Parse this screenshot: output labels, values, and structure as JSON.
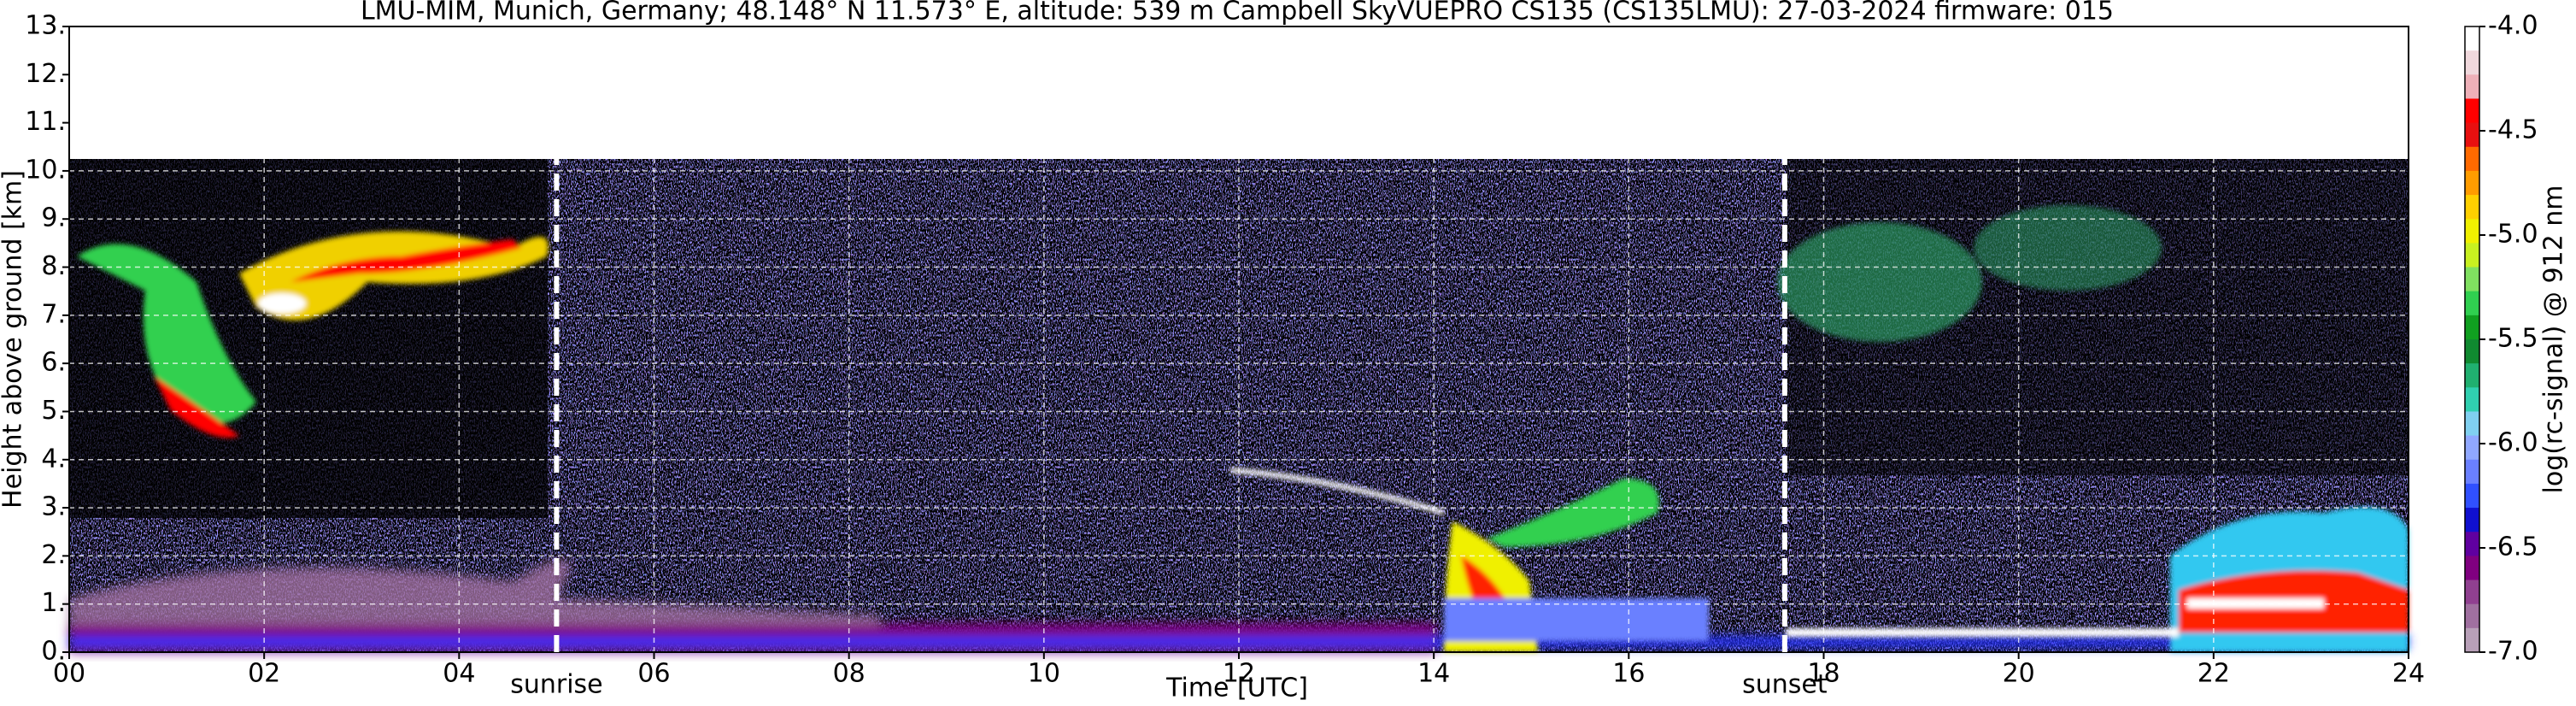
{
  "chart_data": {
    "type": "heatmap",
    "title": "LMU-MIM, Munich, Germany; 48.148° N 11.573° E, altitude: 539 m    Campbell SkyVUEPRO CS135 (CS135LMU): 27-03-2024    firmware: 015",
    "x_label": "Time [UTC]",
    "y_label": "Height above ground [km]",
    "xlim": [
      0,
      24
    ],
    "ylim": [
      0,
      13
    ],
    "xticks": [
      {
        "value": 0,
        "label": "00"
      },
      {
        "value": 2,
        "label": "02"
      },
      {
        "value": 4,
        "label": "04"
      },
      {
        "value": 6,
        "label": "06"
      },
      {
        "value": 8,
        "label": "08"
      },
      {
        "value": 10,
        "label": "10"
      },
      {
        "value": 12,
        "label": "12"
      },
      {
        "value": 14,
        "label": "14"
      },
      {
        "value": 16,
        "label": "16"
      },
      {
        "value": 18,
        "label": "18"
      },
      {
        "value": 20,
        "label": "20"
      },
      {
        "value": 22,
        "label": "22"
      },
      {
        "value": 24,
        "label": "24"
      }
    ],
    "yticks": [
      {
        "value": 0,
        "label": "0."
      },
      {
        "value": 1,
        "label": "1."
      },
      {
        "value": 2,
        "label": "2."
      },
      {
        "value": 3,
        "label": "3."
      },
      {
        "value": 4,
        "label": "4."
      },
      {
        "value": 5,
        "label": "5."
      },
      {
        "value": 6,
        "label": "6."
      },
      {
        "value": 7,
        "label": "7."
      },
      {
        "value": 8,
        "label": "8."
      },
      {
        "value": 9,
        "label": "9."
      },
      {
        "value": 10,
        "label": "10."
      },
      {
        "value": 11,
        "label": "11."
      },
      {
        "value": 12,
        "label": "12."
      },
      {
        "value": 13,
        "label": "13."
      }
    ],
    "grid": true,
    "annotations": [
      {
        "text": "sunrise",
        "x": 5.0
      },
      {
        "text": "sunset",
        "x": 17.6
      }
    ],
    "colorbar": {
      "label": "log(rc-signal) @ 912 nm",
      "lim": [
        -7,
        -4
      ],
      "ticks": [
        {
          "value": -4,
          "label": "-4.0"
        },
        {
          "value": -4.5,
          "label": "-4.5"
        },
        {
          "value": -5,
          "label": "-5.0"
        },
        {
          "value": -5.5,
          "label": "-5.5"
        },
        {
          "value": -6,
          "label": "-6.0"
        },
        {
          "value": -6.5,
          "label": "-6.5"
        },
        {
          "value": -7,
          "label": "-7.0"
        }
      ],
      "colors": [
        "#ffffff",
        "#f0d8dc",
        "#eeb0b8",
        "#ff0000",
        "#e81010",
        "#ff6a00",
        "#ff9c00",
        "#ffd000",
        "#f0f000",
        "#c8f020",
        "#80e060",
        "#30d050",
        "#10a020",
        "#108a30",
        "#20b070",
        "#30d0b0",
        "#80d0f0",
        "#90a8ff",
        "#6a80ff",
        "#3050ff",
        "#1010d0",
        "#6000a0",
        "#800080",
        "#904090",
        "#a070a0",
        "#b8a0b8"
      ]
    }
  }
}
